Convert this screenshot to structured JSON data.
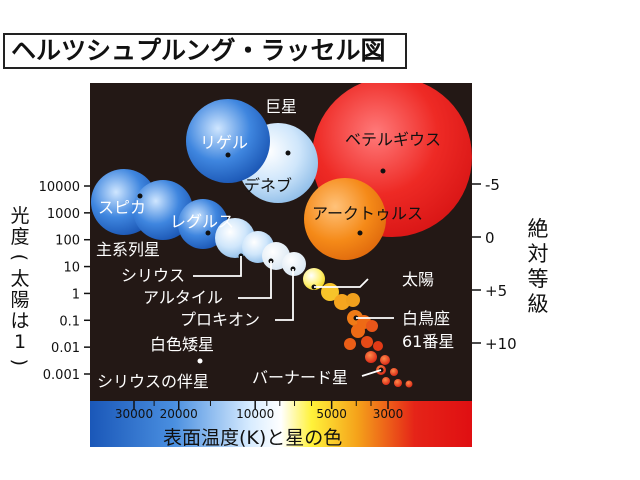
{
  "title": "ヘルツシュプルング・ラッセル図",
  "chart_data": {
    "type": "scatter",
    "title": "ヘルツシュプルング・ラッセル図",
    "xlabel": "表面温度(K)と星の色",
    "ylabel_left": "光度(太陽は1)",
    "ylabel_right": "絶対等級",
    "x_scale": "log",
    "x_reversed": true,
    "y_scale": "log",
    "x_ticks": [
      30000,
      20000,
      10000,
      5000,
      3000
    ],
    "x_tick_labels": [
      "30000",
      "20000",
      "10000",
      "5000",
      "3000"
    ],
    "y_ticks": [
      10000,
      1000,
      100,
      10,
      1,
      0.1,
      0.01,
      0.001
    ],
    "y_tick_labels": [
      "10000",
      "1000",
      "100",
      "10",
      "1",
      "0.1",
      "0.01",
      "0.001"
    ],
    "right_ticks": [
      -5,
      0,
      5,
      10
    ],
    "right_tick_labels": [
      "-5",
      "0",
      "+5",
      "+10"
    ],
    "group_labels": {
      "giants": "巨星",
      "main_sequence": "主系列星",
      "white_dwarfs": "白色矮星"
    },
    "stars": [
      {
        "name": "リゲル",
        "temperature": 12000,
        "luminosity": 120000
      },
      {
        "name": "デネブ",
        "temperature": 8500,
        "luminosity": 60000
      },
      {
        "name": "ベテルギウス",
        "temperature": 3600,
        "luminosity": 100000
      },
      {
        "name": "アークトゥルス",
        "temperature": 4300,
        "luminosity": 170
      },
      {
        "name": "スピカ",
        "temperature": 24000,
        "luminosity": 6000
      },
      {
        "name": "レグルス",
        "temperature": 12500,
        "luminosity": 160
      },
      {
        "name": "シリウス",
        "temperature": 9900,
        "luminosity": 25
      },
      {
        "name": "アルタイル",
        "temperature": 7700,
        "luminosity": 11
      },
      {
        "name": "プロキオン",
        "temperature": 6500,
        "luminosity": 7
      },
      {
        "name": "太陽",
        "temperature": 5800,
        "luminosity": 1
      },
      {
        "name": "白鳥座61番星",
        "temperature": 4400,
        "luminosity": 0.15
      },
      {
        "name": "シリウスの伴星",
        "temperature": 25000,
        "luminosity": 0.006
      },
      {
        "name": "バーナード星",
        "temperature": 3100,
        "luminosity": 0.0035
      }
    ]
  }
}
